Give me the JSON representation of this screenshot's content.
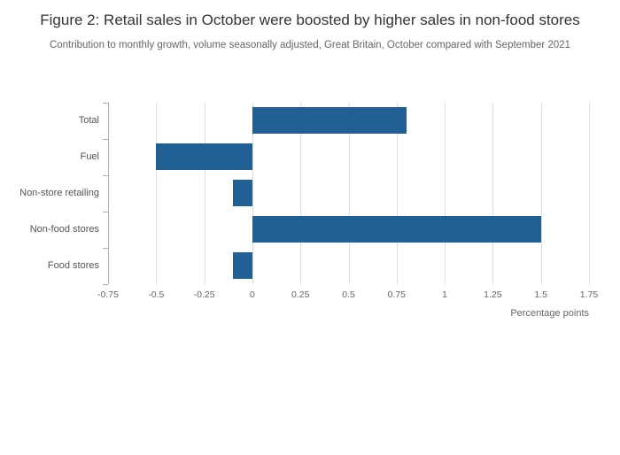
{
  "chart_data": {
    "type": "bar",
    "orientation": "horizontal",
    "title": "Figure 2: Retail sales in October were boosted by higher sales in non-food stores",
    "subtitle": "Contribution to monthly growth, volume seasonally adjusted, Great Britain, October compared with September 2021",
    "categories": [
      "Total",
      "Fuel",
      "Non-store retailing",
      "Non-food stores",
      "Food stores"
    ],
    "values": [
      0.8,
      -0.5,
      -0.1,
      1.5,
      -0.1
    ],
    "xlabel": "Percentage points",
    "ylabel": "",
    "xlim": [
      -0.75,
      1.75
    ],
    "xticks": [
      -0.75,
      -0.5,
      -0.25,
      0,
      0.25,
      0.5,
      0.75,
      1,
      1.25,
      1.5,
      1.75
    ],
    "xtick_labels": [
      "-0.75",
      "-0.5",
      "-0.25",
      "0",
      "0.25",
      "0.5",
      "0.75",
      "1",
      "1.25",
      "1.5",
      "1.75"
    ],
    "grid": true,
    "legend": false,
    "bar_color": "#206095",
    "background": "#ffffff"
  }
}
